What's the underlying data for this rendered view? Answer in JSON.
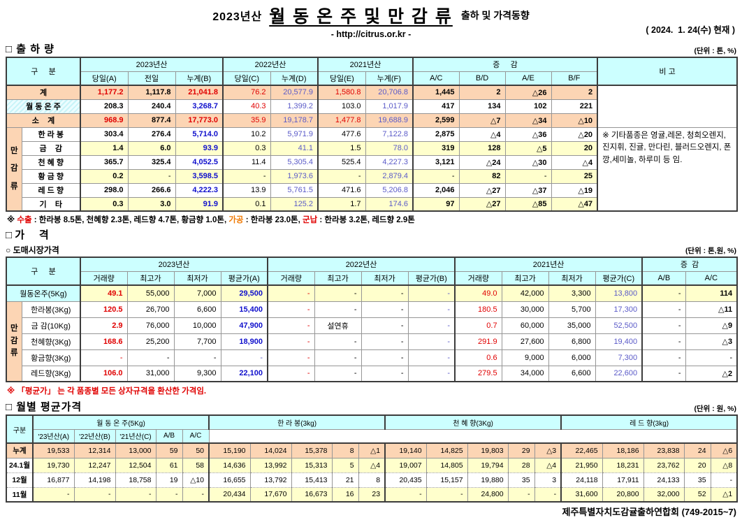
{
  "header": {
    "year_prefix": "2023년산",
    "title": "월 동 온 주 및 만 감 류",
    "title_suffix": "출하 및 가격동향",
    "url": "- http://citrus.or.kr -",
    "date": "( 2024.  1. 24(수) 현재 )"
  },
  "colors": {
    "header_bg": "#CCFFFF",
    "peach": "#FCD5B4",
    "yellow": "#FFFFCC",
    "red": "#E00000",
    "blue": "#0F0FCC"
  },
  "shipment": {
    "section_title": "□ 출 하 량",
    "unit": "(단위 : 톤, %)",
    "head": {
      "corner": "구     분",
      "groups": [
        {
          "label": "2023년산",
          "span": 3
        },
        {
          "label": "2022년산",
          "span": 2
        },
        {
          "label": "2021년산",
          "span": 2
        },
        {
          "label": "증     감",
          "span": 4
        }
      ],
      "remark_col": "비 고",
      "subs": [
        "당일(A)",
        "전일",
        "누계(B)",
        "당일(C)",
        "누계(D)",
        "당일(E)",
        "누계(F)",
        "A/C",
        "B/D",
        "A/E",
        "B/F"
      ]
    },
    "group_label": [
      "만",
      "감",
      "류"
    ],
    "rows": [
      {
        "label": "계",
        "span2": true,
        "labelBg": "p",
        "bg": "p",
        "cells": [
          [
            "1,177.2",
            "rb"
          ],
          [
            "1,117.8",
            "kb"
          ],
          [
            "21,041.8",
            "rb"
          ],
          [
            "76.2",
            "r"
          ],
          [
            "20,577.9",
            "b"
          ],
          [
            "1,580.8",
            "r"
          ],
          [
            "20,706.8",
            "b"
          ],
          [
            "1,445",
            "kb"
          ],
          [
            "2",
            "kb"
          ],
          [
            "△26",
            "kb"
          ],
          [
            "2",
            "kb"
          ]
        ]
      },
      {
        "label": "월 동 온 주",
        "span2": true,
        "labelBg": "h",
        "bg": "w",
        "cells": [
          [
            "208.3",
            "kb"
          ],
          [
            "240.4",
            "kb"
          ],
          [
            "3,268.7",
            "bb"
          ],
          [
            "40.3",
            "r"
          ],
          [
            "1,399.2",
            "b"
          ],
          [
            "103.0",
            "k"
          ],
          [
            "1,017.9",
            "b"
          ],
          [
            "417",
            "kb"
          ],
          [
            "134",
            "kb"
          ],
          [
            "102",
            "kb"
          ],
          [
            "221",
            "kb"
          ]
        ]
      },
      {
        "label": "소    계",
        "span2": true,
        "labelBg": "p",
        "bg": "p",
        "cells": [
          [
            "968.9",
            "rb"
          ],
          [
            "877.4",
            "kb"
          ],
          [
            "17,773.0",
            "rb"
          ],
          [
            "35.9",
            "r"
          ],
          [
            "19,178.7",
            "b"
          ],
          [
            "1,477.8",
            "r"
          ],
          [
            "19,688.9",
            "b"
          ],
          [
            "2,599",
            "kb"
          ],
          [
            "△7",
            "kb"
          ],
          [
            "△34",
            "kb"
          ],
          [
            "△10",
            "kb"
          ]
        ]
      },
      {
        "label": "한 라 봉",
        "bg": "w",
        "cells": [
          [
            "303.4",
            "kb"
          ],
          [
            "276.4",
            "kb"
          ],
          [
            "5,714.0",
            "bb"
          ],
          [
            "10.2",
            "k"
          ],
          [
            "5,971.9",
            "b"
          ],
          [
            "477.6",
            "k"
          ],
          [
            "7,122.8",
            "b"
          ],
          [
            "2,875",
            "kb"
          ],
          [
            "△4",
            "kb"
          ],
          [
            "△36",
            "kb"
          ],
          [
            "△20",
            "kb"
          ]
        ]
      },
      {
        "label": "금    감",
        "bg": "y",
        "cells": [
          [
            "1.4",
            "kb"
          ],
          [
            "6.0",
            "kb"
          ],
          [
            "93.9",
            "bb"
          ],
          [
            "0.3",
            "k"
          ],
          [
            "41.1",
            "b"
          ],
          [
            "1.5",
            "k"
          ],
          [
            "78.0",
            "b"
          ],
          [
            "319",
            "kb"
          ],
          [
            "128",
            "kb"
          ],
          [
            "△5",
            "kb"
          ],
          [
            "20",
            "kb"
          ]
        ]
      },
      {
        "label": "천 혜 향",
        "bg": "w",
        "cells": [
          [
            "365.7",
            "kb"
          ],
          [
            "325.4",
            "kb"
          ],
          [
            "4,052.5",
            "bb"
          ],
          [
            "11.4",
            "k"
          ],
          [
            "5,305.4",
            "b"
          ],
          [
            "525.4",
            "k"
          ],
          [
            "4,227.3",
            "b"
          ],
          [
            "3,121",
            "kb"
          ],
          [
            "△24",
            "kb"
          ],
          [
            "△30",
            "kb"
          ],
          [
            "△4",
            "kb"
          ]
        ]
      },
      {
        "label": "황 금 향",
        "bg": "y",
        "cells": [
          [
            "0.2",
            "kb"
          ],
          [
            "-",
            "k"
          ],
          [
            "3,598.5",
            "bb"
          ],
          [
            "-",
            "k"
          ],
          [
            "1,973.6",
            "b"
          ],
          [
            "-",
            "k"
          ],
          [
            "2,879.4",
            "b"
          ],
          [
            "-",
            "k"
          ],
          [
            "82",
            "kb"
          ],
          [
            "-",
            "k"
          ],
          [
            "25",
            "kb"
          ]
        ]
      },
      {
        "label": "레 드 향",
        "bg": "w",
        "cells": [
          [
            "298.0",
            "kb"
          ],
          [
            "266.6",
            "kb"
          ],
          [
            "4,222.3",
            "bb"
          ],
          [
            "13.9",
            "k"
          ],
          [
            "5,761.5",
            "b"
          ],
          [
            "471.6",
            "k"
          ],
          [
            "5,206.8",
            "b"
          ],
          [
            "2,046",
            "kb"
          ],
          [
            "△27",
            "kb"
          ],
          [
            "△37",
            "kb"
          ],
          [
            "△19",
            "kb"
          ]
        ]
      },
      {
        "label": "기    타",
        "bg": "y",
        "cells": [
          [
            "0.3",
            "kb"
          ],
          [
            "3.0",
            "kb"
          ],
          [
            "91.9",
            "bb"
          ],
          [
            "0.1",
            "k"
          ],
          [
            "125.2",
            "b"
          ],
          [
            "1.7",
            "k"
          ],
          [
            "174.6",
            "b"
          ],
          [
            "97",
            "kb"
          ],
          [
            "△27",
            "kb"
          ],
          [
            "△85",
            "kb"
          ],
          [
            "△47",
            "kb"
          ]
        ]
      }
    ],
    "remark": "※ 기타품종은 영귤,레몬, 청희오렌지, 진지휘, 진귤, 만다린, 블러드오렌지, 폰깡,세미놀, 하루미 등 임."
  },
  "export_note": {
    "parts": [
      {
        "t": "※ ",
        "s": "kb"
      },
      {
        "t": "수출",
        "s": "rb"
      },
      {
        "t": " : 한라봉 8.5톤, 천혜향 2.3톤, 레드향 4.7톤, 황금향 1.0톤, ",
        "s": "kb"
      },
      {
        "t": "가공",
        "s": "ob"
      },
      {
        "t": " : 한라봉 23.0톤, ",
        "s": "kb"
      },
      {
        "t": "군납",
        "s": "rb"
      },
      {
        "t": " : 한라봉 3.2톤, 레드향 2.9톤",
        "s": "kb"
      }
    ]
  },
  "price": {
    "section_title": "□ 가     격",
    "sub_title": "○ 도매시장가격",
    "unit": "(단위 : 톤,원, %)",
    "head": {
      "corner": "구     분",
      "groups": [
        {
          "label": "2023년산",
          "span": 4
        },
        {
          "label": "2022년산",
          "span": 4
        },
        {
          "label": "2021년산",
          "span": 4
        },
        {
          "label": "증  감",
          "span": 2
        }
      ],
      "subs": [
        "거래량",
        "최고가",
        "최저가",
        "평균가(A)",
        "거래량",
        "최고가",
        "최저가",
        "평균가(B)",
        "거래량",
        "최고가",
        "최저가",
        "평균가(C)",
        "A/B",
        "A/C"
      ]
    },
    "group_label": [
      "만",
      "감",
      "류"
    ],
    "rows": [
      {
        "label": "월동온주(5Kg)",
        "span2": true,
        "labelBg": "c",
        "bg": "y",
        "cells": [
          [
            "49.1",
            "rb"
          ],
          [
            "55,000",
            "k"
          ],
          [
            "7,000",
            "k"
          ],
          [
            "29,500",
            "bb"
          ],
          [
            "-",
            "r"
          ],
          [
            "-",
            "k"
          ],
          [
            "-",
            "k"
          ],
          [
            "-",
            "b"
          ],
          [
            "49.0",
            "r"
          ],
          [
            "42,000",
            "k"
          ],
          [
            "3,300",
            "k"
          ],
          [
            "13,800",
            "b"
          ],
          [
            "-",
            "k"
          ],
          [
            "114",
            "kb"
          ]
        ]
      },
      {
        "label": "한라봉(3Kg)",
        "bg": "w",
        "cells": [
          [
            "120.5",
            "rb"
          ],
          [
            "26,700",
            "k"
          ],
          [
            "6,600",
            "k"
          ],
          [
            "15,400",
            "bb"
          ],
          [
            "-",
            "r"
          ],
          [
            "-",
            "k"
          ],
          [
            "-",
            "k"
          ],
          [
            "-",
            "b"
          ],
          [
            "180.5",
            "r"
          ],
          [
            "30,000",
            "k"
          ],
          [
            "5,700",
            "k"
          ],
          [
            "17,300",
            "b"
          ],
          [
            "-",
            "k"
          ],
          [
            "△11",
            "kb"
          ]
        ]
      },
      {
        "label": "금 감(10Kg)",
        "bg": "w",
        "cells": [
          [
            "2.9",
            "rb"
          ],
          [
            "76,000",
            "k"
          ],
          [
            "10,000",
            "k"
          ],
          [
            "47,900",
            "bb"
          ],
          [
            "-",
            "r"
          ],
          [
            "설연휴",
            "kc"
          ],
          [
            "-",
            "k"
          ],
          [
            "-",
            "b"
          ],
          [
            "0.7",
            "r"
          ],
          [
            "60,000",
            "k"
          ],
          [
            "35,000",
            "k"
          ],
          [
            "52,500",
            "b"
          ],
          [
            "-",
            "k"
          ],
          [
            "△9",
            "kb"
          ]
        ]
      },
      {
        "label": "천혜향(3Kg)",
        "bg": "w",
        "cells": [
          [
            "168.6",
            "rb"
          ],
          [
            "25,200",
            "k"
          ],
          [
            "7,700",
            "k"
          ],
          [
            "18,900",
            "bb"
          ],
          [
            "-",
            "r"
          ],
          [
            "-",
            "k"
          ],
          [
            "-",
            "k"
          ],
          [
            "-",
            "b"
          ],
          [
            "291.9",
            "r"
          ],
          [
            "27,600",
            "k"
          ],
          [
            "6,800",
            "k"
          ],
          [
            "19,400",
            "b"
          ],
          [
            "-",
            "k"
          ],
          [
            "△3",
            "kb"
          ]
        ]
      },
      {
        "label": "황금향(3Kg)",
        "bg": "w",
        "cells": [
          [
            "-",
            "r"
          ],
          [
            "-",
            "k"
          ],
          [
            "-",
            "k"
          ],
          [
            "-",
            "b"
          ],
          [
            "-",
            "r"
          ],
          [
            "-",
            "k"
          ],
          [
            "-",
            "k"
          ],
          [
            "-",
            "b"
          ],
          [
            "0.6",
            "r"
          ],
          [
            "9,000",
            "k"
          ],
          [
            "6,000",
            "k"
          ],
          [
            "7,300",
            "b"
          ],
          [
            "-",
            "k"
          ],
          [
            "-",
            "k"
          ]
        ]
      },
      {
        "label": "레드향(3Kg)",
        "bg": "w",
        "cells": [
          [
            "106.0",
            "rb"
          ],
          [
            "31,000",
            "k"
          ],
          [
            "9,300",
            "k"
          ],
          [
            "22,100",
            "bb"
          ],
          [
            "-",
            "r"
          ],
          [
            "-",
            "k"
          ],
          [
            "-",
            "k"
          ],
          [
            "-",
            "b"
          ],
          [
            "279.5",
            "r"
          ],
          [
            "34,000",
            "k"
          ],
          [
            "6,600",
            "k"
          ],
          [
            "22,600",
            "b"
          ],
          [
            "-",
            "k"
          ],
          [
            "△2",
            "kb"
          ]
        ]
      }
    ],
    "avg_note": "※ 「평균가」 는 각 품종별 모든 상자규격을 환산한 가격임."
  },
  "monthly": {
    "section_title": "□ 월별 평균가격",
    "unit": "(단위 : 원, %)",
    "head": {
      "corner": "구분",
      "groups": [
        {
          "label": "월 동 온 주(5Kg)"
        },
        {
          "label": "한 라 봉(3kg)"
        },
        {
          "label": "천 혜 향(3Kg)"
        },
        {
          "label": "레 드 향(3kg)"
        }
      ],
      "subs": [
        "'23년산(A)",
        "'22년산(B)",
        "'21년산(C)",
        "A/B",
        "A/C"
      ]
    },
    "rows": [
      {
        "label": "누계",
        "bg": "p",
        "labelBg": "p",
        "cells": [
          "19,533",
          "12,314",
          "13,000",
          "59",
          "50",
          "15,190",
          "14,024",
          "15,378",
          "8",
          "△1",
          "19,140",
          "14,825",
          "19,803",
          "29",
          "△3",
          "22,465",
          "18,186",
          "23,838",
          "24",
          "△6"
        ]
      },
      {
        "label": "24.1월",
        "bg": "y",
        "labelBg": "w",
        "cells": [
          "19,730",
          "12,247",
          "12,504",
          "61",
          "58",
          "14,636",
          "13,992",
          "15,313",
          "5",
          "△4",
          "19,007",
          "14,805",
          "19,794",
          "28",
          "△4",
          "21,950",
          "18,231",
          "23,762",
          "20",
          "△8"
        ]
      },
      {
        "label": "12월",
        "bg": "w",
        "labelBg": "w",
        "cells": [
          "16,877",
          "14,198",
          "18,758",
          "19",
          "△10",
          "16,655",
          "13,792",
          "15,413",
          "21",
          "8",
          "20,435",
          "15,157",
          "19,880",
          "35",
          "3",
          "24,118",
          "17,911",
          "24,133",
          "35",
          "-"
        ]
      },
      {
        "label": "11월",
        "bg": "y",
        "labelBg": "w",
        "cells": [
          "-",
          "-",
          "-",
          "-",
          "-",
          "20,434",
          "17,670",
          "16,673",
          "16",
          "23",
          "-",
          "-",
          "24,800",
          "-",
          "-",
          "31,600",
          "20,800",
          "32,000",
          "52",
          "△1"
        ]
      }
    ]
  },
  "footer": {
    "org": "제주특별자치도감귤출하연합회 (749-2015~7)"
  }
}
